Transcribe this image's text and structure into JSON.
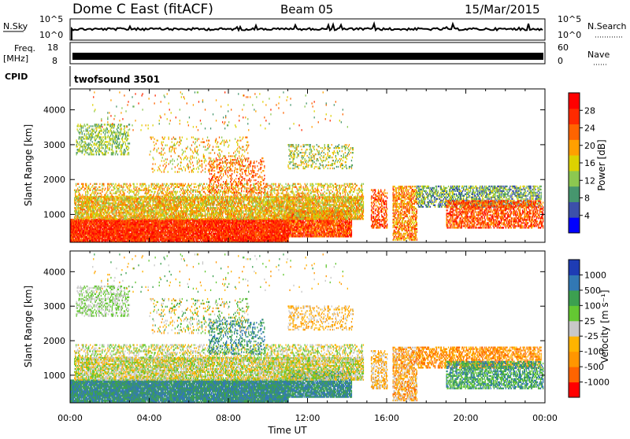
{
  "header": {
    "station": "Dome C East (fitACF)",
    "beam": "Beam 05",
    "date": "15/Mar/2015"
  },
  "top_panels": {
    "nsky_label": "N.Sky",
    "nsearch_label": "N.Search",
    "nsky_ticks": [
      "10^5",
      "10^0"
    ],
    "nsearch_ticks": [
      "10^5",
      "10^0"
    ],
    "freq_label": "Freq.",
    "freq_unit": "[MHz]",
    "freq_ticks": [
      "18",
      "8"
    ],
    "nave_label": "Nave",
    "nave_ticks": [
      "60",
      "0"
    ],
    "cpid_label": "CPID",
    "cpid_value": "twofsound 3501"
  },
  "colors": {
    "power_scale": [
      "#0000ff",
      "#3c50aa",
      "#46966e",
      "#8cc850",
      "#dcd200",
      "#ffa000",
      "#ff6400",
      "#ff2a00",
      "#ff0000"
    ],
    "velocity_scale": [
      "#1e3cb4",
      "#3278b4",
      "#3ca050",
      "#64c832",
      "#c8c8c8",
      "#ffb400",
      "#ff9600",
      "#ff6400",
      "#ff0000"
    ]
  },
  "chart_data": [
    {
      "type": "heatmap",
      "name": "power",
      "ylabel": "Slant Range [km]",
      "ylim": [
        200,
        4600
      ],
      "xlim": [
        0,
        24
      ],
      "yticks": [
        "1000",
        "2000",
        "3000",
        "4000"
      ],
      "xticks": [
        "00:00",
        "04:00",
        "08:00",
        "12:00",
        "16:00",
        "20:00",
        "00:00"
      ],
      "colorbar_label": "Power [dB]",
      "colorbar_ticks": [
        "4",
        "8",
        "12",
        "16",
        "20",
        "24",
        "28"
      ]
    },
    {
      "type": "heatmap",
      "name": "velocity",
      "ylabel": "Slant Range [km]",
      "xlabel": "Time UT",
      "ylim": [
        200,
        4600
      ],
      "xlim": [
        0,
        24
      ],
      "yticks": [
        "1000",
        "2000",
        "3000",
        "4000"
      ],
      "xticks": [
        "00:00",
        "04:00",
        "08:00",
        "12:00",
        "16:00",
        "20:00",
        "00:00"
      ],
      "colorbar_label": "Velocity [m s⁻¹]",
      "colorbar_ticks": [
        "1000",
        "500",
        "100",
        "25",
        "-25",
        "-100",
        "-500",
        "-1000"
      ]
    }
  ]
}
